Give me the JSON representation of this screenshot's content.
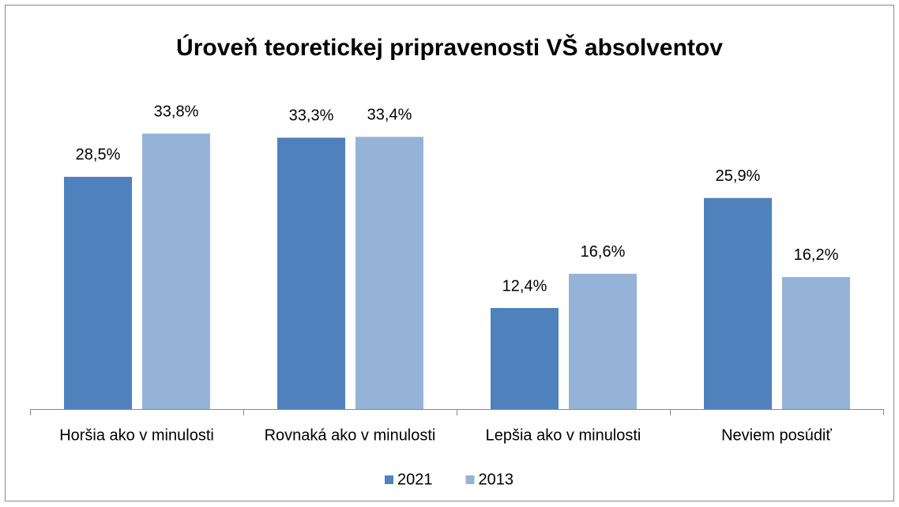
{
  "chart_data": {
    "type": "bar",
    "title": "Úroveň teoretickej pripravenosti VŠ absolventov",
    "categories": [
      "Horšia ako v minulosti",
      "Rovnaká ako v minulosti",
      "Lepšia ako v minulosti",
      "Neviem posúdiť"
    ],
    "series": [
      {
        "name": "2021",
        "color": "#4f81bd",
        "values": [
          28.5,
          33.3,
          12.4,
          25.9
        ],
        "value_labels": [
          "28,5%",
          "33,3%",
          "12,4%",
          "25,9%"
        ]
      },
      {
        "name": "2013",
        "color": "#95b3d7",
        "values": [
          33.8,
          33.4,
          16.6,
          16.2
        ],
        "value_labels": [
          "33,8%",
          "33,4%",
          "16,6%",
          "16,2%"
        ]
      }
    ],
    "legend": "bottom"
  }
}
